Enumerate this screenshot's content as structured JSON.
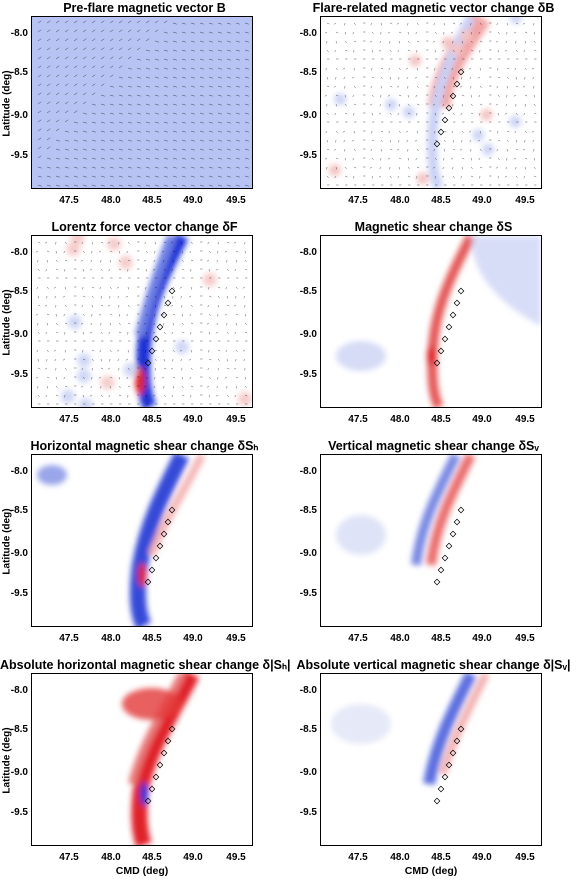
{
  "panels": [
    {
      "title": "Pre-flare magnetic vector B",
      "kind": "prebx"
    },
    {
      "title": "Flare-related magnetic vector change δB",
      "kind": "db"
    },
    {
      "title": "Lorentz force vector change δF",
      "kind": "df"
    },
    {
      "title": "Magnetic shear change δS",
      "kind": "ds"
    },
    {
      "title": "Horizontal magnetic shear change δSₕ",
      "kind": "dsh"
    },
    {
      "title": "Vertical magnetic shear change δSᵥ",
      "kind": "dsv"
    },
    {
      "title": "Absolute horizontal magnetic shear change δ|Sₕ|",
      "kind": "adsh"
    },
    {
      "title": "Absolute vertical magnetic shear change δ|Sᵥ|",
      "kind": "adsv"
    }
  ],
  "axes": {
    "ylabel": "Latitude (deg)",
    "xlabel": "CMD (deg)",
    "yticks": [
      "-8.0",
      "-8.5",
      "-9.0",
      "-9.5"
    ],
    "xticks": [
      "47.5",
      "48.0",
      "48.5",
      "49.0",
      "49.5"
    ]
  },
  "colors": {
    "positive": "#e0202a",
    "negative": "#1f33d6",
    "background": "#ffffff"
  }
}
